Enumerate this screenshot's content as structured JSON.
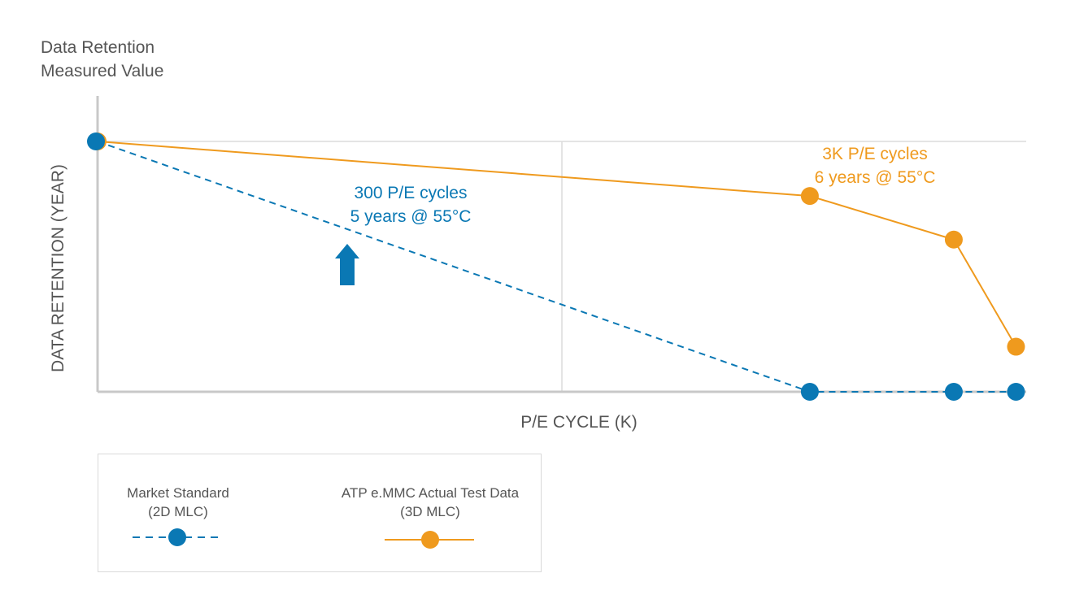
{
  "chart_data": {
    "type": "line",
    "title_lines": [
      "Data Retention",
      "Measured Value"
    ],
    "xlabel": "P/E CYCLE (K)",
    "ylabel": "DATA RETENTION (YEAR)",
    "grid": true,
    "legend_position": "bottom-left",
    "x_ticks_labeled": false,
    "y_ticks_labeled": false,
    "series": [
      {
        "name": "Market Standard (2D MLC)",
        "name_lines": [
          "Market Standard",
          "(2D MLC)"
        ],
        "color": "#0a78b4",
        "line_style": "dashed",
        "marker": "circle",
        "points": [
          [
            0.0,
            1.0
          ],
          [
            0.767,
            0.0
          ],
          [
            0.922,
            0.0
          ],
          [
            0.989,
            0.0
          ]
        ]
      },
      {
        "name": "ATP e.MMC Actual Test Data (3D MLC)",
        "name_lines": [
          "ATP e.MMC Actual Test Data",
          "(3D MLC)"
        ],
        "color": "#ef9a1e",
        "line_style": "solid",
        "marker": "circle",
        "points": [
          [
            0.0,
            1.0
          ],
          [
            0.767,
            0.782
          ],
          [
            0.922,
            0.608
          ],
          [
            0.989,
            0.18
          ]
        ]
      }
    ],
    "annotations": [
      {
        "lines": [
          "300 P/E cycles",
          "5 years @ 55°C"
        ],
        "color": "#0a78b4",
        "series": 0
      },
      {
        "lines": [
          "3K P/E cycles",
          "6 years @ 55°C"
        ],
        "color": "#ef9a1e",
        "series": 1
      }
    ],
    "arrow": {
      "direction": "up",
      "color": "#0a78b4",
      "icon": "up-arrow-icon"
    },
    "axis_color": "#c8c8c8",
    "grid_color": "#dcdcdc"
  }
}
